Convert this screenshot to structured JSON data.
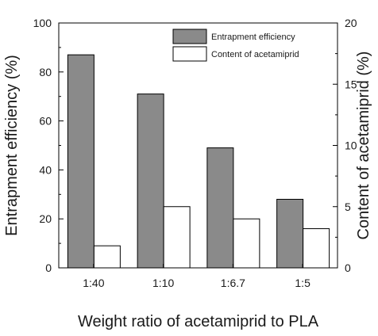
{
  "chart_data": {
    "type": "bar",
    "title": "",
    "xlabel": "Weight ratio of acetamiprid to PLA",
    "ylabel": "Entrapment efficiency (%)",
    "ylabel_right": "Content of acetamiprid (%)",
    "categories": [
      "1:40",
      "1:10",
      "1:6.7",
      "1:5"
    ],
    "ylim": [
      0,
      100
    ],
    "ylim_right": [
      0,
      20
    ],
    "yticks": [
      "0",
      "20",
      "40",
      "60",
      "80",
      "100"
    ],
    "yticks_right": [
      "0",
      "5",
      "10",
      "15",
      "20"
    ],
    "grid": false,
    "legend_position": "top-right",
    "series": [
      {
        "name": "Entrapment efficiency",
        "axis": "left",
        "values": [
          87,
          71,
          49,
          28
        ],
        "color": "#8a8a8a"
      },
      {
        "name": "Content of acetamiprid",
        "axis": "right",
        "values": [
          1.8,
          5.0,
          4.0,
          3.2
        ],
        "color": "#ffffff"
      }
    ]
  }
}
